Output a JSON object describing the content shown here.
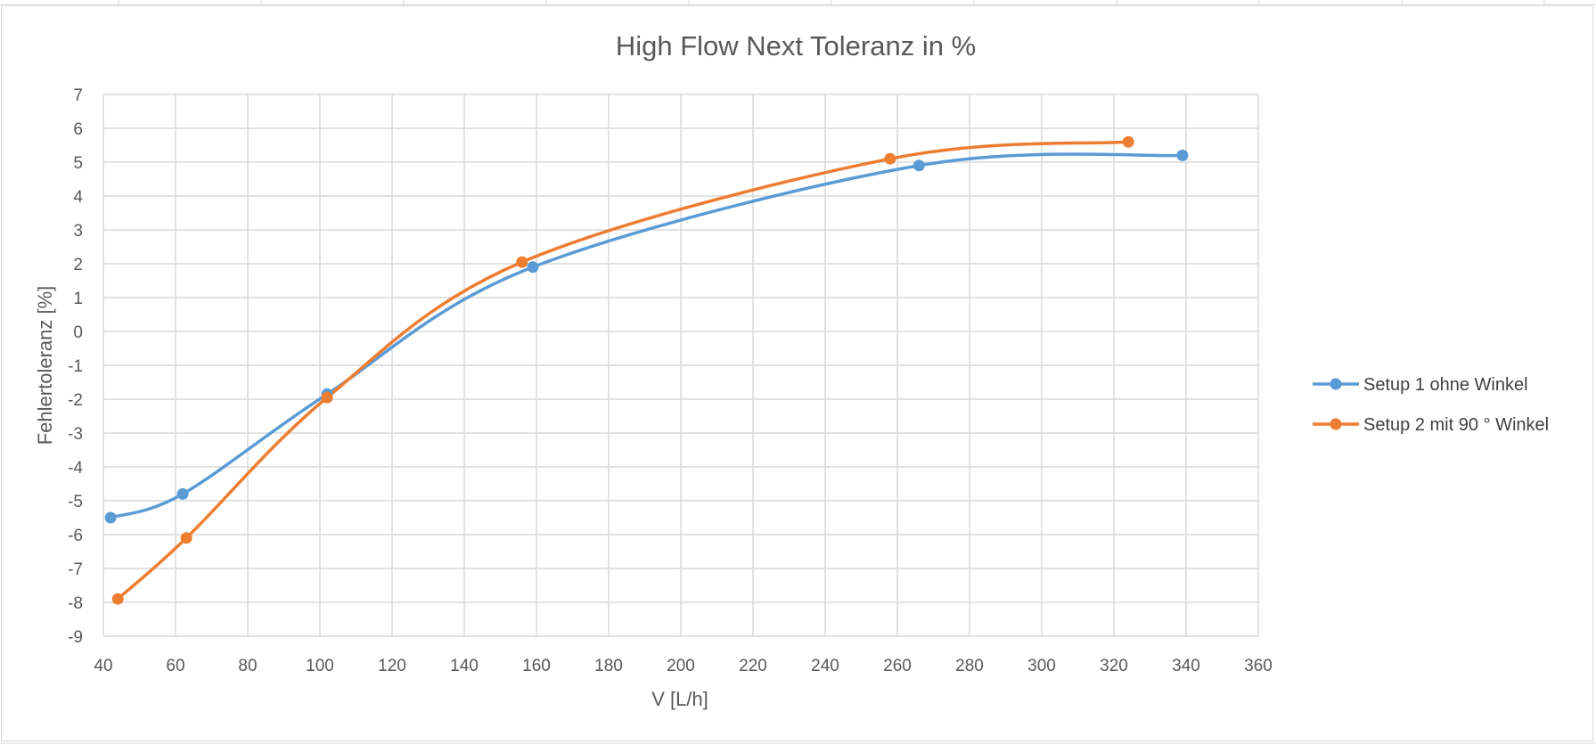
{
  "chart_data": {
    "type": "line",
    "title": "High Flow Next Toleranz in %",
    "xlabel": "V [L/h]",
    "ylabel": "Fehlertoleranz [%]",
    "xlim": [
      40,
      360
    ],
    "ylim": [
      -9,
      7
    ],
    "x_ticks": [
      40,
      60,
      80,
      100,
      120,
      140,
      160,
      180,
      200,
      220,
      240,
      260,
      280,
      300,
      320,
      340,
      360
    ],
    "y_ticks": [
      7,
      6,
      5,
      4,
      3,
      2,
      1,
      0,
      -1,
      -2,
      -3,
      -4,
      -5,
      -6,
      -7,
      -8,
      -9
    ],
    "grid": true,
    "smooth": true,
    "legend_position": "right",
    "series": [
      {
        "name": "Setup 1 ohne Winkel",
        "color": "#5b9bd5",
        "x": [
          42,
          62,
          102,
          159,
          266,
          339
        ],
        "y": [
          -5.5,
          -4.8,
          -1.85,
          1.9,
          4.9,
          5.2
        ]
      },
      {
        "name": "Setup 2 mit 90 ° Winkel",
        "color": "#ed7d31",
        "x": [
          44,
          63,
          102,
          156,
          258,
          324
        ],
        "y": [
          -7.9,
          -6.1,
          -1.95,
          2.05,
          5.1,
          5.6
        ]
      }
    ]
  },
  "colors": {
    "gridline": "#d9d9d9",
    "text": "#595959",
    "legend_text": "#404040"
  }
}
